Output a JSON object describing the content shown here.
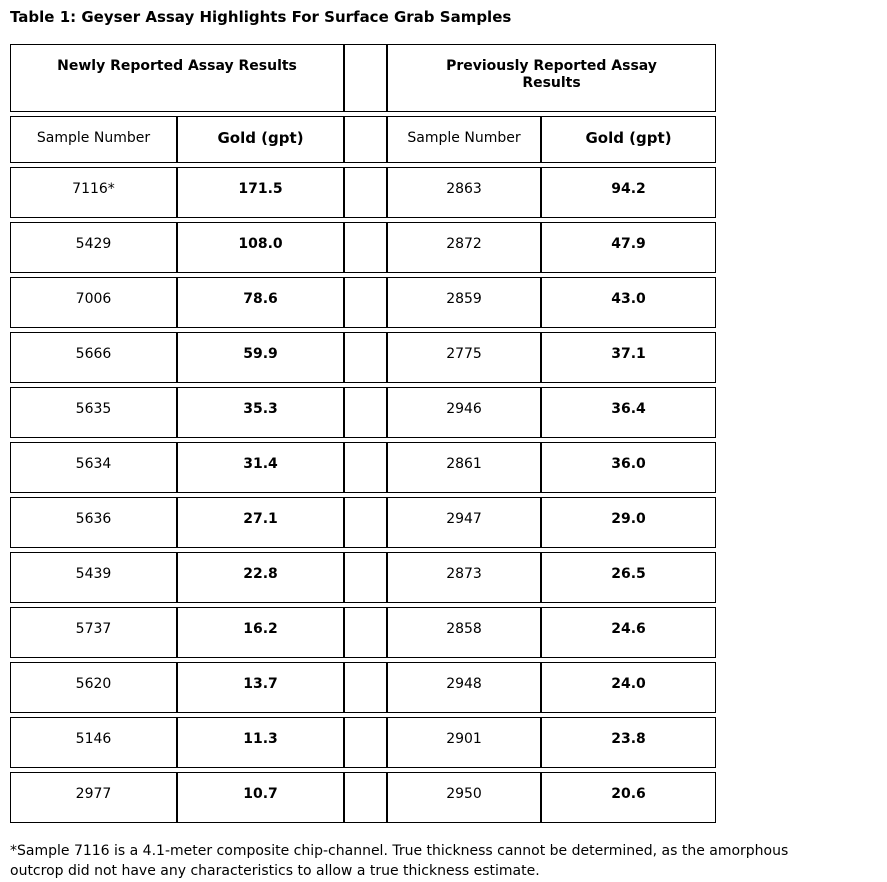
{
  "title": "Table 1: Geyser Assay Highlights For Surface Grab Samples",
  "table": {
    "left": {
      "header": "Newly Reported Assay Results",
      "columns": [
        "Sample Number",
        "Gold (gpt)"
      ],
      "rows": [
        [
          "7116*",
          "171.5"
        ],
        [
          "5429",
          "108.0"
        ],
        [
          "7006",
          "78.6"
        ],
        [
          "5666",
          "59.9"
        ],
        [
          "5635",
          "35.3"
        ],
        [
          "5634",
          "31.4"
        ],
        [
          "5636",
          "27.1"
        ],
        [
          "5439",
          "22.8"
        ],
        [
          "5737",
          "16.2"
        ],
        [
          "5620",
          "13.7"
        ],
        [
          "5146",
          "11.3"
        ],
        [
          "2977",
          "10.7"
        ]
      ]
    },
    "right": {
      "header": "Previously Reported Assay Results",
      "columns": [
        "Sample Number",
        "Gold (gpt)"
      ],
      "rows": [
        [
          "2863",
          "94.2"
        ],
        [
          "2872",
          "47.9"
        ],
        [
          "2859",
          "43.0"
        ],
        [
          "2775",
          "37.1"
        ],
        [
          "2946",
          "36.4"
        ],
        [
          "2861",
          "36.0"
        ],
        [
          "2947",
          "29.0"
        ],
        [
          "2873",
          "26.5"
        ],
        [
          "2858",
          "24.6"
        ],
        [
          "2948",
          "24.0"
        ],
        [
          "2901",
          "23.8"
        ],
        [
          "2950",
          "20.6"
        ]
      ]
    }
  },
  "footnote": "*Sample 7116 is a 4.1-meter composite chip-channel. True thickness cannot be determined, as the amorphous outcrop did not have any characteristics to allow a true thickness estimate."
}
